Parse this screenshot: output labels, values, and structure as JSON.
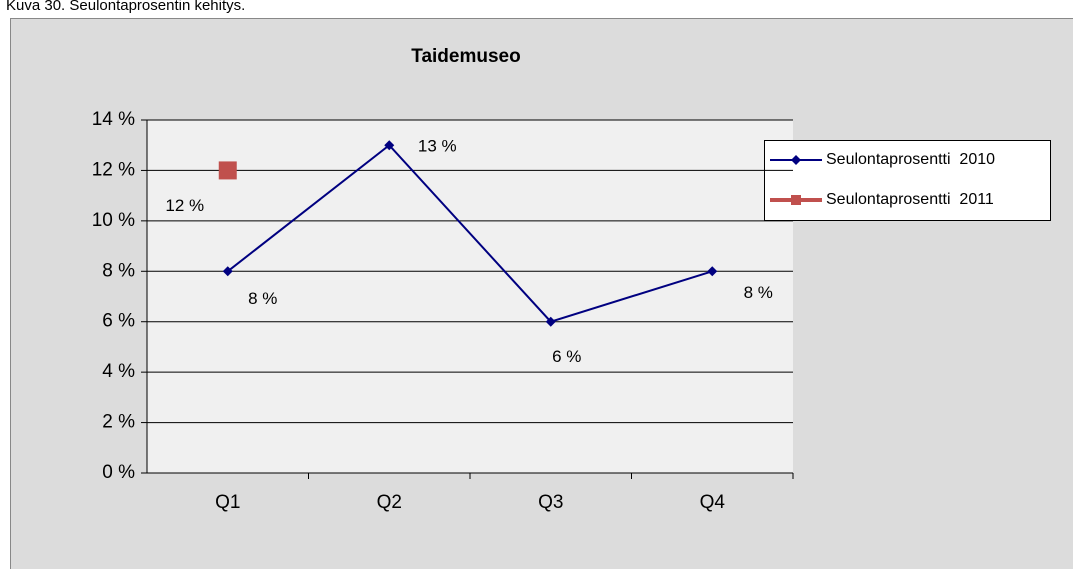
{
  "caption": "Kuva 30. Seulontaprosentin kehitys.",
  "chart_data": {
    "type": "line",
    "title": "Taidemuseo",
    "categories": [
      "Q1",
      "Q2",
      "Q3",
      "Q4"
    ],
    "series": [
      {
        "name": "Seulontaprosentti  2010",
        "color": "#000080",
        "marker": "diamond",
        "values": [
          8,
          13,
          6,
          8
        ],
        "value_labels": [
          "8 %",
          "13 %",
          "6 %",
          "8 %"
        ]
      },
      {
        "name": "Seulontaprosentti  2011",
        "color": "#c0504d",
        "marker": "square",
        "values": [
          12,
          null,
          null,
          null
        ],
        "value_labels": [
          "12 %",
          null,
          null,
          null
        ]
      }
    ],
    "ylim": [
      0,
      14
    ],
    "yticks": [
      {
        "value": 0,
        "label": "0 %"
      },
      {
        "value": 2,
        "label": "2 %"
      },
      {
        "value": 4,
        "label": "4 %"
      },
      {
        "value": 6,
        "label": "6 %"
      },
      {
        "value": 8,
        "label": "8 %"
      },
      {
        "value": 10,
        "label": "10 %"
      },
      {
        "value": 12,
        "label": "12 %"
      },
      {
        "value": 14,
        "label": "14 %"
      }
    ],
    "grid": true,
    "legend": "right"
  }
}
